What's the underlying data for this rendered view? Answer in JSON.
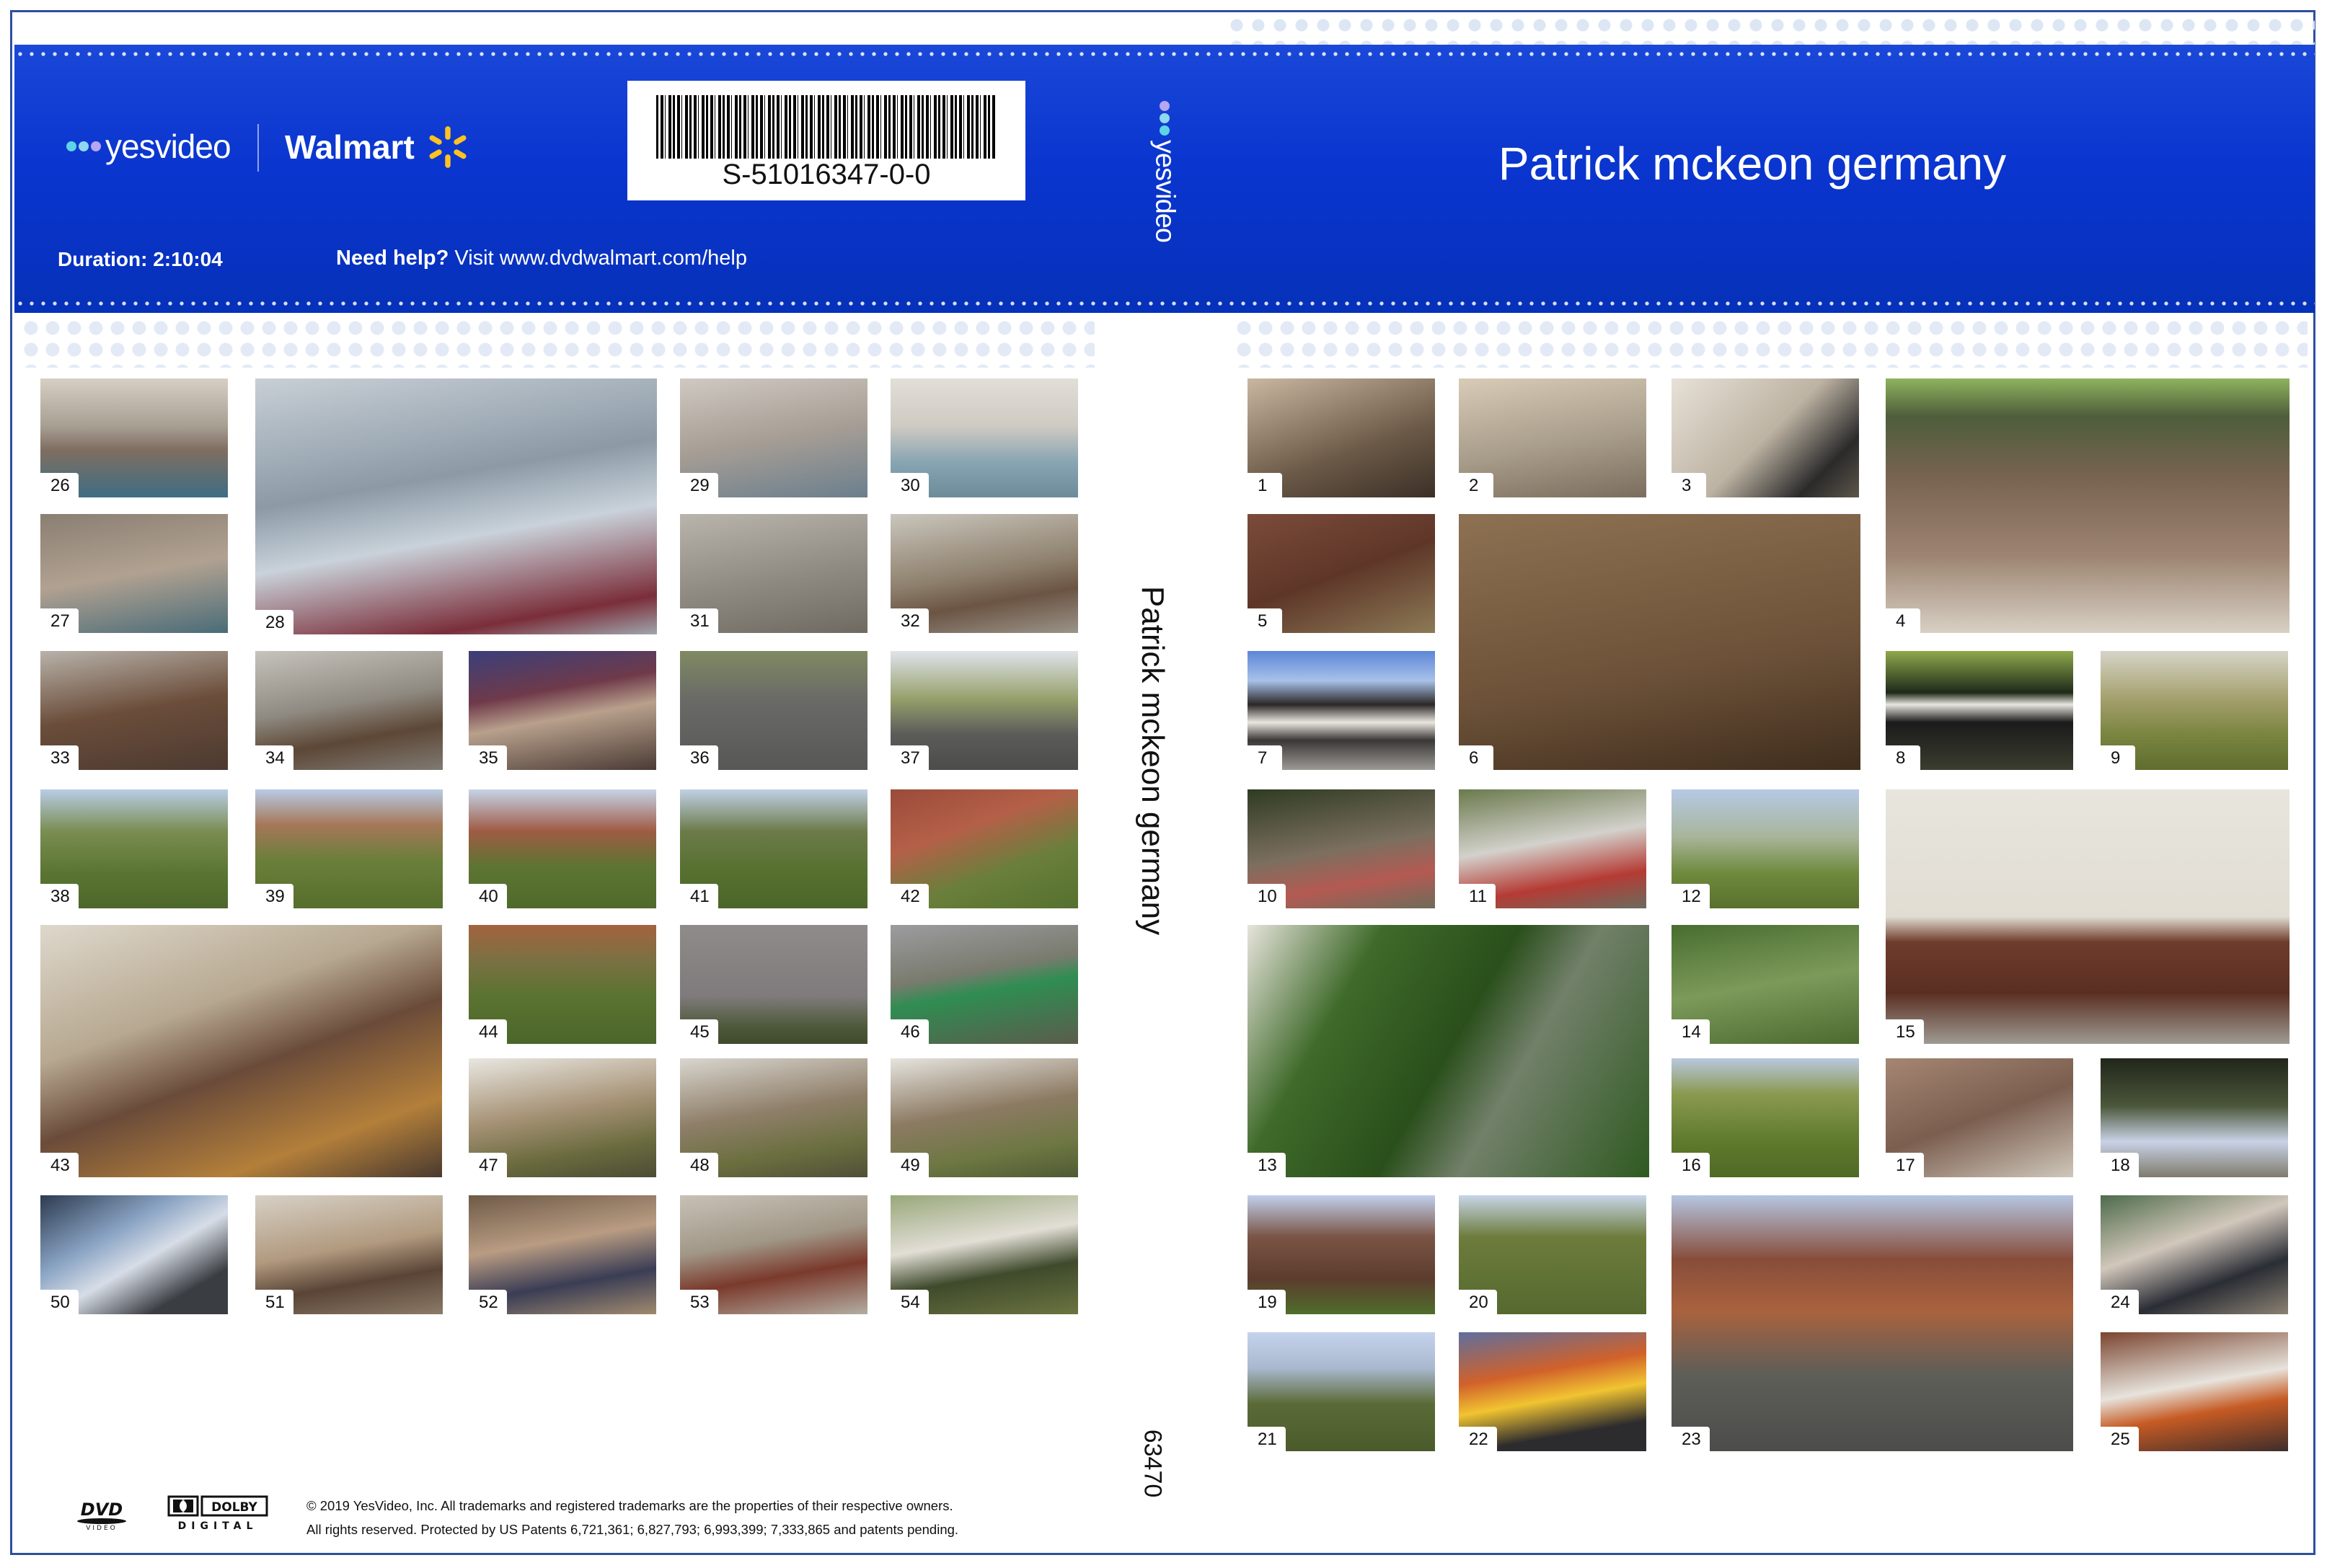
{
  "header": {
    "yesvideo_logo": "yesvideo",
    "walmart_logo": "Walmart",
    "duration_label": "Duration:",
    "duration_value": "2:10:04",
    "help_bold": "Need help?",
    "help_text": "Visit www.dvdwalmart.com/help",
    "barcode_text": "S-51016347-0-0",
    "spine_logo": "yesvideo",
    "title": "Patrick mckeon germany"
  },
  "spine": {
    "title": "Patrick mckeon germany",
    "number": "63470"
  },
  "footer": {
    "dvd_logo": "DVD",
    "dvd_sub": "VIDEO",
    "dolby_logo": "DOLBY",
    "dolby_sub": "DIGITAL",
    "legal_line1": "© 2019 YesVideo, Inc. All trademarks and registered trademarks are the properties of their respective owners.",
    "legal_line2": "All rights reserved. Protected by US Patents 6,721,361; 6,827,793; 6,993,399; 7,333,865 and patents pending."
  },
  "colors": {
    "band": "#0a35cf",
    "walmart_spark": "#ffc220",
    "frame": "#2d4fa0"
  },
  "thumbnails": [
    {
      "n": "1",
      "bg": "linear-gradient(160deg,#c9b7a1,#6b5947 60%,#3b2f26)"
    },
    {
      "n": "2",
      "bg": "linear-gradient(170deg,#d8ccb8,#a89c8a 55%,#7b6d5d)"
    },
    {
      "n": "3",
      "bg": "linear-gradient(135deg,#e7e1d7,#bdb3a3 50%,#2a2a2a 80%,#5d554b)"
    },
    {
      "n": "4",
      "bg": "linear-gradient(180deg,#8fb35e 0%,#4e5d3a 15%,#7a6452 40%,#9d8572 70%,#d8d0c4)"
    },
    {
      "n": "5",
      "bg": "linear-gradient(160deg,#7b4b3a,#5e3628 50%,#8c7a56)"
    },
    {
      "n": "6",
      "bg": "linear-gradient(170deg,#8d7152,#6c5138 60%,#3f2d1d)"
    },
    {
      "n": "7",
      "bg": "linear-gradient(180deg,#5d86d8 0%,#a8c1e8 25%,#2b2727 45%,#eae6df 60%,#3a3737 75%,#9c9a94)"
    },
    {
      "n": "8",
      "bg": "linear-gradient(180deg,#8fa94c 0%,#1e2a19 35%,#e8e6e0 45%,#1b1b1b 60%,#3a3d2f)"
    },
    {
      "n": "9",
      "bg": "linear-gradient(180deg,#d6d4c8 0%,#a5a06e 40%,#7a8540 70%,#5f6d2f)"
    },
    {
      "n": "10",
      "bg": "linear-gradient(170deg,#2f3b22,#7b6f5f 50%,#b45a52 75%,#6e6b5a)"
    },
    {
      "n": "11",
      "bg": "linear-gradient(170deg,#6a7a4c,#d3d1cc 45%,#b53b34 75%,#6b6b5e)"
    },
    {
      "n": "12",
      "bg": "linear-gradient(180deg,#b6c9e5 0%,#a8b59a 40%,#6f8b3e 70%,#58702d)"
    },
    {
      "n": "13",
      "bg": "linear-gradient(120deg,#e7e4dc 0%,#3f6a2a 25%,#2a4f1b 50%,#72806a 65%,#2f5a21)"
    },
    {
      "n": "14",
      "bg": "linear-gradient(170deg,#486d2f,#7c9a5a 50%,#4d6a2f)"
    },
    {
      "n": "15",
      "bg": "linear-gradient(180deg,#e8e5dd 0%,#e1ddd3 50%,#6e3c2b 60%,#5a2f22 80%,#9f9a92)"
    },
    {
      "n": "16",
      "bg": "linear-gradient(180deg,#b9c7e0 0%,#8a9a4f 30%,#5e7a2c 70%,#4f6a25)"
    },
    {
      "n": "17",
      "bg": "linear-gradient(160deg,#a58672,#7b5e4f 50%,#cfc7bb)"
    },
    {
      "n": "18",
      "bg": "linear-gradient(180deg,#21261a 0%,#4b563a 40%,#c8d2e6 70%,#7f7b6d)"
    },
    {
      "n": "19",
      "bg": "linear-gradient(180deg,#c0d0ec 0%,#7a5444 35%,#5c3c2e 70%,#4f6c2c)"
    },
    {
      "n": "20",
      "bg": "linear-gradient(180deg,#c8d5e8 0%,#6d7c3c 35%,#56692f 100%)"
    },
    {
      "n": "21",
      "bg": "linear-gradient(180deg,#c4d3ec 0%,#aab8cf 30%,#5b6b37 60%,#4b5a2b)"
    },
    {
      "n": "22",
      "bg": "linear-gradient(170deg,#5e6f9e,#d1612a 35%,#f1c431 55%,#2c2b2e 80%)"
    },
    {
      "n": "23",
      "bg": "linear-gradient(180deg,#b5c6e2 0%,#874d3a 25%,#a9623e 45%,#5e5e58 70%,#4c4d4b)"
    },
    {
      "n": "24",
      "bg": "linear-gradient(160deg,#4d6b4a,#d2c7bb 40%,#2a2d35 70%,#8b8172)"
    },
    {
      "n": "25",
      "bg": "linear-gradient(170deg,#7b4530,#e7e3dc 45%,#c65b24 65%,#3e2d2a)"
    },
    {
      "n": "26",
      "bg": "linear-gradient(180deg,#d7cfc4 0%,#a89f93 40%,#7f6e61 60%,#3f6d83)"
    },
    {
      "n": "27",
      "bg": "linear-gradient(170deg,#8a7f72,#b1a191 50%,#4a6c78)"
    },
    {
      "n": "28",
      "bg": "linear-gradient(170deg,#c8cfd6,#8c9aa6 40%,#c9d2da 60%,#7a2e3a 88%,#9fa6ad)"
    },
    {
      "n": "29",
      "bg": "linear-gradient(170deg,#cfc9c1,#a79e95 50%,#6b7f8d)"
    },
    {
      "n": "30",
      "bg": "linear-gradient(180deg,#e2ded8 0%,#cfcac2 40%,#89a5b3 70%,#6c8b99)"
    },
    {
      "n": "31",
      "bg": "linear-gradient(170deg,#b9b5ad,#8e8a82 55%,#6f6a61)"
    },
    {
      "n": "32",
      "bg": "linear-gradient(170deg,#cac6bd,#8d7f6c 50%,#6b5444 70%,#9a9488)"
    },
    {
      "n": "33",
      "bg": "linear-gradient(170deg,#b8b2aa,#6b4d3a 50%,#4c3a31)"
    },
    {
      "n": "34",
      "bg": "linear-gradient(170deg,#c6c3bc,#8f8a81 45%,#5d4736 70%,#7f7a73)"
    },
    {
      "n": "35",
      "bg": "linear-gradient(170deg,#3a3f7a,#6f3a4a 35%,#b8a08c 55%,#4a3b35)"
    },
    {
      "n": "36",
      "bg": "linear-gradient(180deg,#7f8a62 0%,#6a6b67 40%,#575856 100%)"
    },
    {
      "n": "37",
      "bg": "linear-gradient(180deg,#dfe4ec 0%,#96a06b 40%,#5b5c5a 70%,#4c4d4a)"
    },
    {
      "n": "38",
      "bg": "linear-gradient(180deg,#b9cde6 0%,#7a8d52 35%,#5a7532 70%,#4c672a)"
    },
    {
      "n": "39",
      "bg": "linear-gradient(180deg,#b8cbe5 0%,#a57758 30%,#6a7f3a 60%,#566e2c)"
    },
    {
      "n": "40",
      "bg": "linear-gradient(180deg,#c5d4e8 0%,#9f5b44 35%,#5d7532 65%,#4f6a2c)"
    },
    {
      "n": "41",
      "bg": "linear-gradient(180deg,#c0d0e6 0%,#6d7b4a 35%,#55702f 70%,#4b662a)"
    },
    {
      "n": "42",
      "bg": "linear-gradient(160deg,#9b4b3a,#b46048 35%,#6a7f3b 65%,#55702f)"
    },
    {
      "n": "43",
      "bg": "linear-gradient(160deg,#ded8cc,#b7a890 35%,#6a4b3a 55%,#b37f3a 80%,#4a3a2f)"
    },
    {
      "n": "44",
      "bg": "linear-gradient(180deg,#a3633e 0%,#7a7142 30%,#5b7331 60%,#4b662a)"
    },
    {
      "n": "45",
      "bg": "linear-gradient(180deg,#8f8b8a 0%,#7f7b7c 60%,#4f5a3a 85%,#3f4a2e)"
    },
    {
      "n": "46",
      "bg": "linear-gradient(170deg,#9c9c9f,#7a7b6f 40%,#2f8d52 55%,#5b5c4c)"
    },
    {
      "n": "47",
      "bg": "linear-gradient(170deg,#e9e7e1,#a69276 45%,#6b6b3f 75%,#4c4c35)"
    },
    {
      "n": "48",
      "bg": "linear-gradient(170deg,#d9d6cf,#8f7f6a 45%,#6b6f3f 75%,#514f38)"
    },
    {
      "n": "49",
      "bg": "linear-gradient(170deg,#e6e4df,#8c7a63 45%,#6e7843 75%,#4f5a34)"
    },
    {
      "n": "50",
      "bg": "linear-gradient(150deg,#2c3a4f,#8aa4c4 35%,#d7dde7 55%,#3a3d42 80%)"
    },
    {
      "n": "51",
      "bg": "linear-gradient(170deg,#d7d0c6,#b19a7f 45%,#5a4436 70%,#8b7b68)"
    },
    {
      "n": "52",
      "bg": "linear-gradient(170deg,#6e5a48,#b99c82 40%,#3a3d55 70%,#a08a6e)"
    },
    {
      "n": "53",
      "bg": "linear-gradient(170deg,#c7c1b6,#a19787 40%,#7a3a2c 65%,#b4ada2)"
    },
    {
      "n": "54",
      "bg": "linear-gradient(170deg,#98a87a,#e2ded6 40%,#3f4a2c 65%,#6b7440)"
    }
  ]
}
